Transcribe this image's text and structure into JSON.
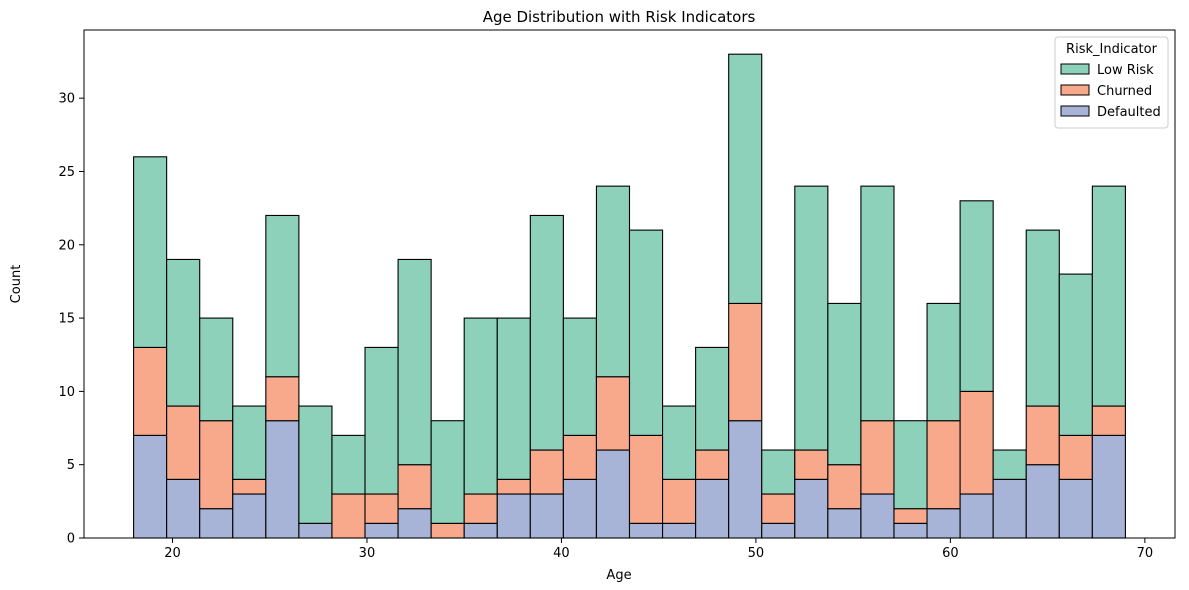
{
  "chart_data": {
    "type": "bar",
    "stacked": true,
    "title": "Age Distribution with Risk Indicators",
    "xlabel": "Age",
    "ylabel": "Count",
    "xlim": [
      15.45,
      71.55
    ],
    "ylim": [
      0,
      34.65
    ],
    "xticks": [
      20,
      30,
      40,
      50,
      60,
      70
    ],
    "yticks": [
      0,
      5,
      10,
      15,
      20,
      25,
      30
    ],
    "bin_start": 18,
    "bin_width": 1.7,
    "legend": {
      "title": "Risk_Indicator",
      "placement": "top-right",
      "entries": [
        "Low Risk",
        "Churned",
        "Defaulted"
      ]
    },
    "stack_order": [
      "Defaulted",
      "Churned",
      "Low Risk"
    ],
    "series": [
      {
        "name": "Defaulted",
        "color": "#a7b4d8",
        "values": [
          7,
          4,
          2,
          3,
          8,
          1,
          0,
          1,
          2,
          0,
          1,
          3,
          3,
          4,
          6,
          1,
          1,
          4,
          8,
          1,
          4,
          2,
          3,
          1,
          2,
          3,
          4,
          5,
          4,
          7
        ]
      },
      {
        "name": "Churned",
        "color": "#f9a98b",
        "values": [
          6,
          5,
          6,
          1,
          3,
          0,
          3,
          2,
          3,
          1,
          2,
          1,
          3,
          3,
          5,
          6,
          3,
          2,
          8,
          2,
          2,
          3,
          5,
          1,
          6,
          7,
          0,
          4,
          3,
          2
        ]
      },
      {
        "name": "Low Risk",
        "color": "#8dd1bb",
        "values": [
          13,
          10,
          7,
          5,
          11,
          8,
          4,
          10,
          14,
          7,
          12,
          11,
          16,
          8,
          13,
          14,
          5,
          7,
          17,
          3,
          18,
          11,
          16,
          6,
          8,
          13,
          2,
          12,
          11,
          15
        ]
      }
    ]
  }
}
